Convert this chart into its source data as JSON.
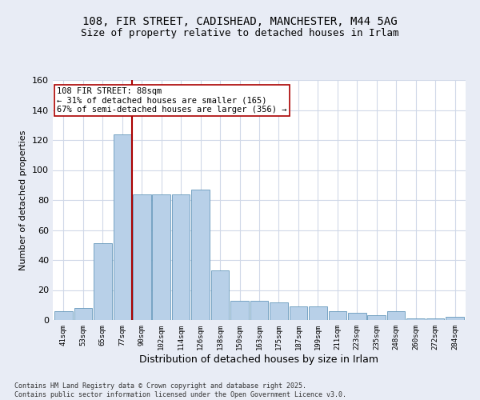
{
  "title1": "108, FIR STREET, CADISHEAD, MANCHESTER, M44 5AG",
  "title2": "Size of property relative to detached houses in Irlam",
  "xlabel": "Distribution of detached houses by size in Irlam",
  "ylabel": "Number of detached properties",
  "categories": [
    "41sqm",
    "53sqm",
    "65sqm",
    "77sqm",
    "90sqm",
    "102sqm",
    "114sqm",
    "126sqm",
    "138sqm",
    "150sqm",
    "163sqm",
    "175sqm",
    "187sqm",
    "199sqm",
    "211sqm",
    "223sqm",
    "235sqm",
    "248sqm",
    "260sqm",
    "272sqm",
    "284sqm"
  ],
  "values": [
    6,
    8,
    51,
    124,
    84,
    84,
    84,
    87,
    33,
    13,
    13,
    12,
    9,
    9,
    6,
    5,
    3,
    6,
    1,
    1,
    2
  ],
  "bar_color": "#b8d0e8",
  "bar_edge_color": "#6699bb",
  "vline_index": 3.5,
  "vline_color": "#aa0000",
  "annotation_text": "108 FIR STREET: 88sqm\n← 31% of detached houses are smaller (165)\n67% of semi-detached houses are larger (356) →",
  "annotation_box_color": "#ffffff",
  "annotation_box_edge_color": "#aa0000",
  "annotation_fontsize": 7.5,
  "title_fontsize": 10,
  "subtitle_fontsize": 9,
  "ylabel_fontsize": 8,
  "xlabel_fontsize": 9,
  "footer_text": "Contains HM Land Registry data © Crown copyright and database right 2025.\nContains public sector information licensed under the Open Government Licence v3.0.",
  "ylim": [
    0,
    160
  ],
  "yticks": [
    0,
    20,
    40,
    60,
    80,
    100,
    120,
    140,
    160
  ],
  "fig_bg_color": "#e8ecf5",
  "plot_bg_color": "#ffffff",
  "grid_color": "#d0d8e8"
}
